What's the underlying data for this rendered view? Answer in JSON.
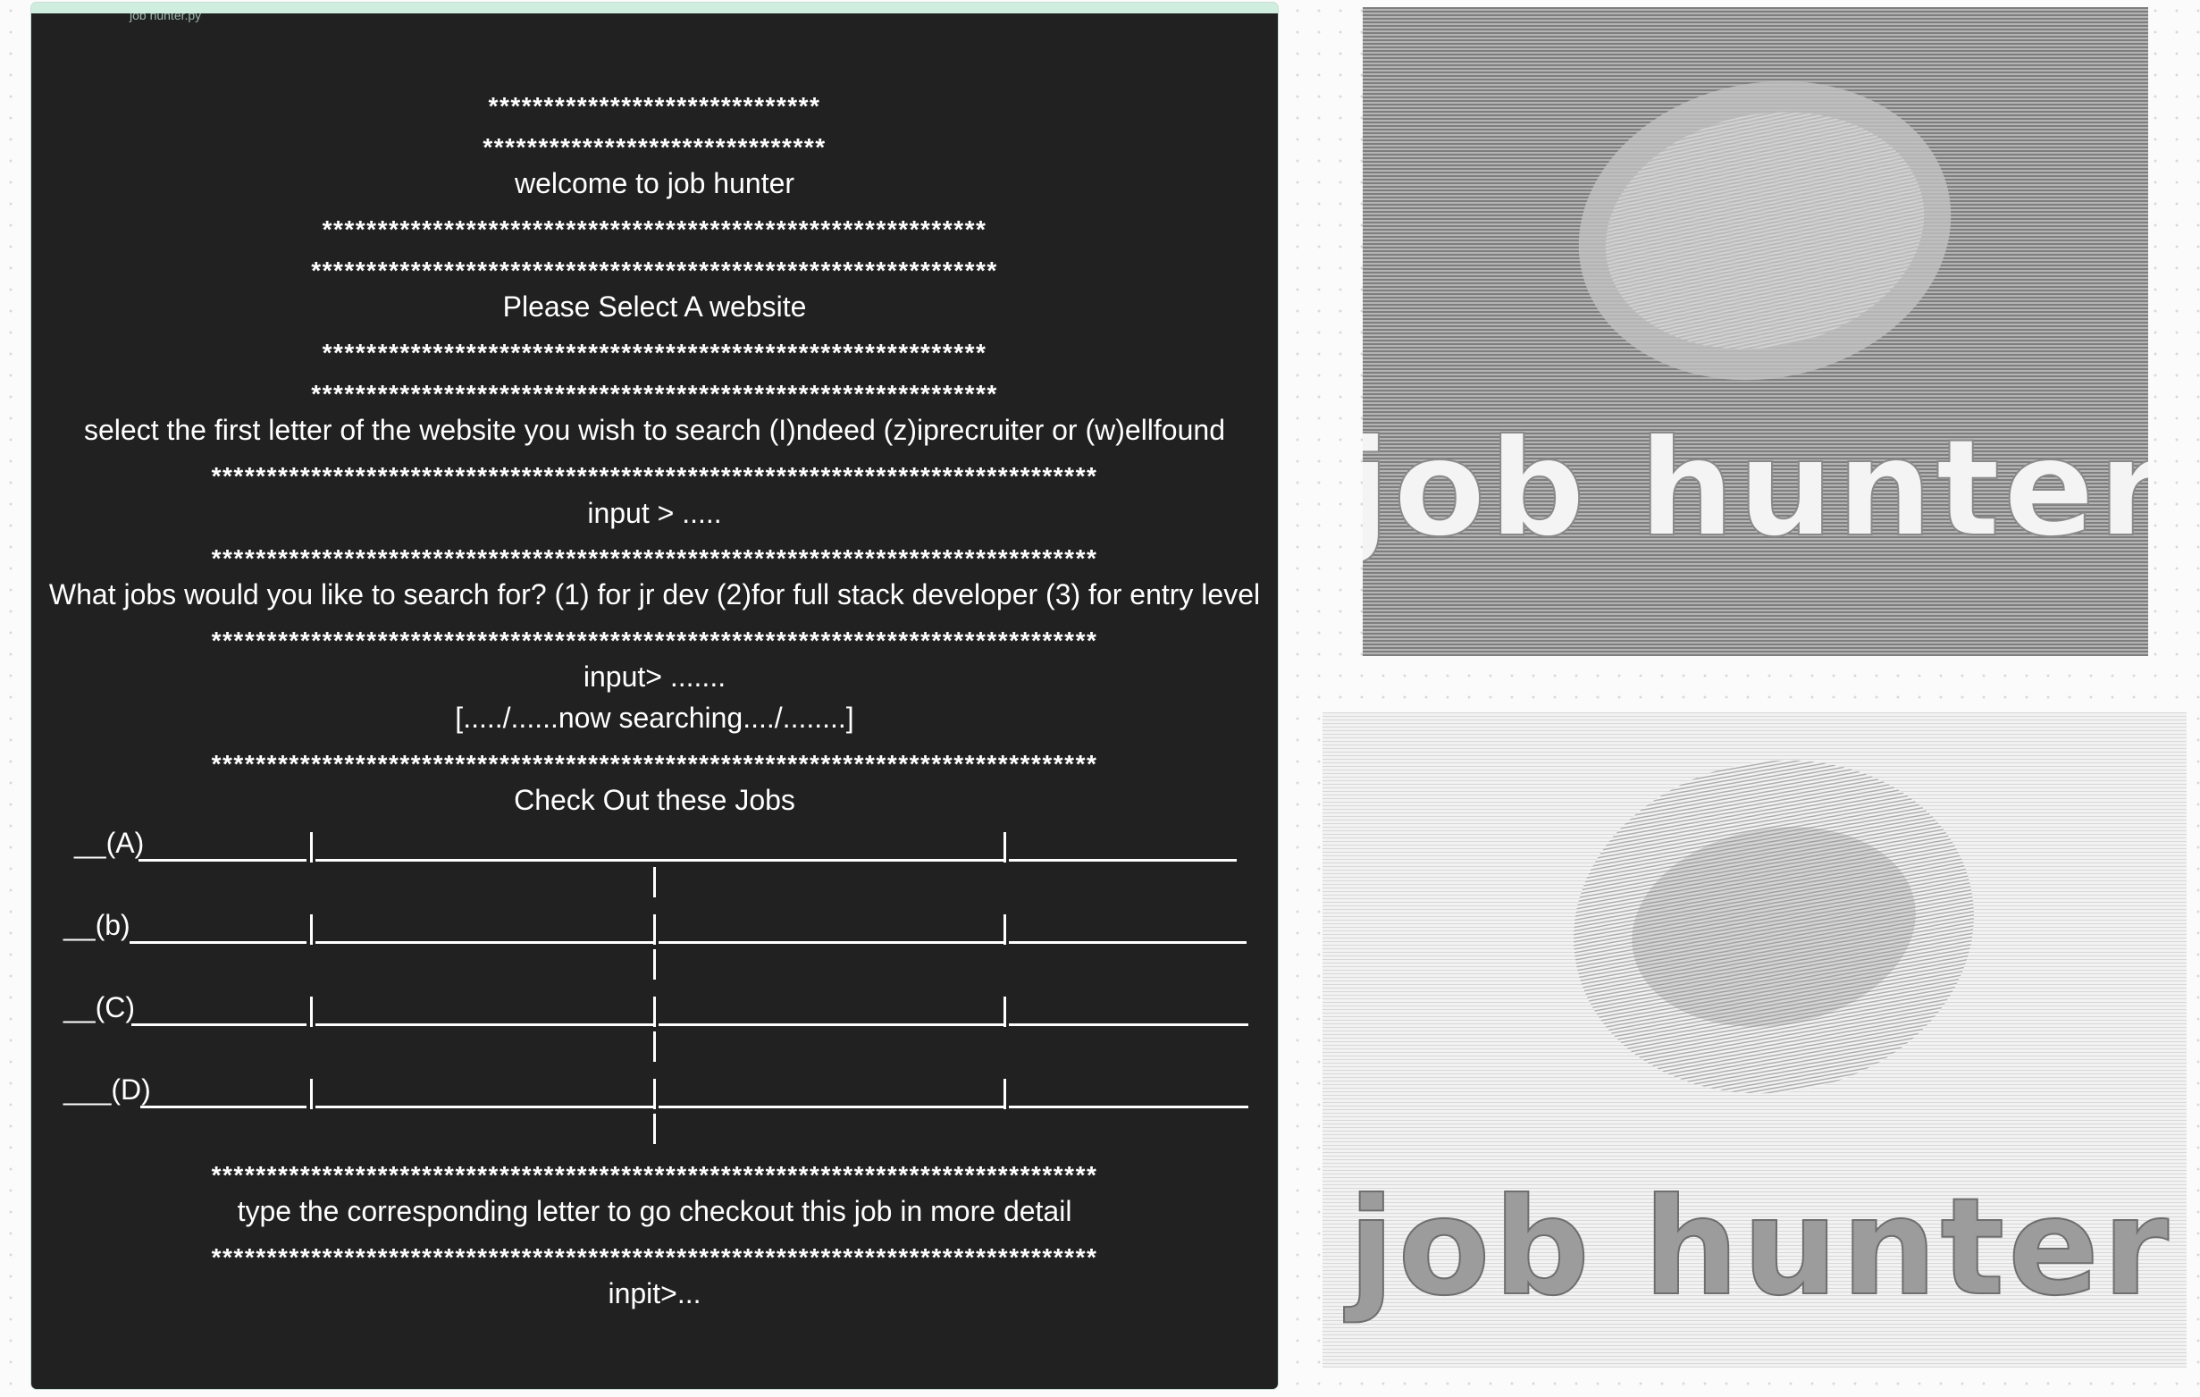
{
  "window": {
    "title": "job hunter.py"
  },
  "terminal": {
    "stars_short_1": "******************************",
    "stars_short_2": "*******************************",
    "welcome": "welcome to job hunter",
    "stars_mid_1": "************************************************************",
    "stars_mid_2": "**************************************************************",
    "select_site_title": "Please Select A website",
    "stars_mid_3": "************************************************************",
    "stars_mid_4": "**************************************************************",
    "site_prompt": "select the first letter of the website you wish to search (I)ndeed (z)iprecruiter or (w)ellfound",
    "stars_long_1": "********************************************************************************",
    "input_1": "input > .....",
    "stars_long_2": "********************************************************************************",
    "jobs_prompt": "What jobs would you like to search for? (1) for jr dev (2)for full stack developer (3) for entry level",
    "stars_long_3": "********************************************************************************",
    "input_2": "input> .......",
    "searching": "[...../......now searching..../........]",
    "stars_long_4": "********************************************************************************",
    "jobs_title": "Check Out these Jobs",
    "job_rows": [
      {
        "label": "__(A)"
      },
      {
        "label": "__(b)"
      },
      {
        "label": "__(C)"
      },
      {
        "label": "___(D)"
      }
    ],
    "stars_long_5": "********************************************************************************",
    "detail_prompt": "type the corresponding letter to go checkout this job in more detail",
    "stars_long_6": "********************************************************************************",
    "input_3": "inpit>..."
  },
  "art": {
    "art1_text": "job hunter",
    "art2_text": "job hunter"
  },
  "colors": {
    "terminal_bg": "#212121",
    "terminal_fg": "#ffffff",
    "frame_accent": "#cfeee0",
    "canvas_bg": "#fbfbfb"
  }
}
